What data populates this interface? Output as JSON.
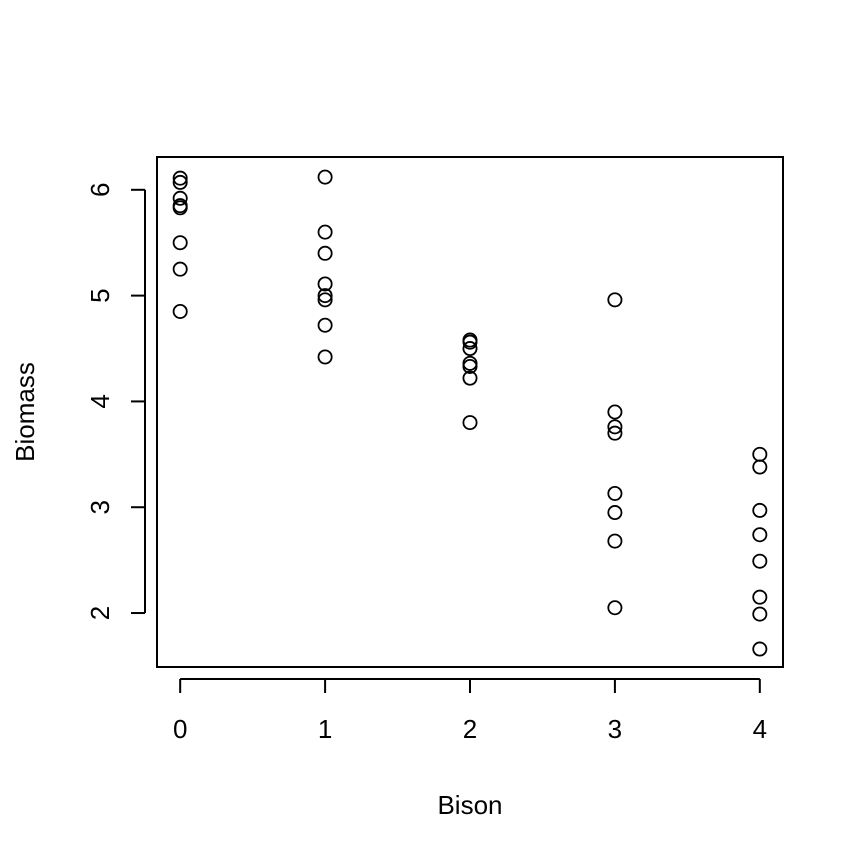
{
  "chart_data": {
    "type": "scatter",
    "title": "",
    "xlabel": "Bison",
    "ylabel": "Biomass",
    "xlim": [
      -0.16,
      4.16
    ],
    "ylim": [
      1.49,
      6.31
    ],
    "xticks": [
      0,
      1,
      2,
      3,
      4
    ],
    "xtick_labels": [
      "0",
      "1",
      "2",
      "3",
      "4"
    ],
    "yticks": [
      2,
      3,
      4,
      5,
      6
    ],
    "ytick_labels": [
      "2",
      "3",
      "4",
      "5",
      "6"
    ],
    "grid": false,
    "marker": "open-circle",
    "marker_color": "#000000",
    "series": [
      {
        "points": [
          {
            "x": 0,
            "y": 6.11
          },
          {
            "x": 0,
            "y": 6.07
          },
          {
            "x": 0,
            "y": 5.92
          },
          {
            "x": 0,
            "y": 5.85
          },
          {
            "x": 0,
            "y": 5.83
          },
          {
            "x": 0,
            "y": 5.5
          },
          {
            "x": 0,
            "y": 5.25
          },
          {
            "x": 0,
            "y": 4.85
          },
          {
            "x": 1,
            "y": 6.12
          },
          {
            "x": 1,
            "y": 5.6
          },
          {
            "x": 1,
            "y": 5.4
          },
          {
            "x": 1,
            "y": 5.11
          },
          {
            "x": 1,
            "y": 5.0
          },
          {
            "x": 1,
            "y": 4.96
          },
          {
            "x": 1,
            "y": 4.72
          },
          {
            "x": 1,
            "y": 4.42
          },
          {
            "x": 2,
            "y": 4.58
          },
          {
            "x": 2,
            "y": 4.56
          },
          {
            "x": 2,
            "y": 4.5
          },
          {
            "x": 2,
            "y": 4.36
          },
          {
            "x": 2,
            "y": 4.33
          },
          {
            "x": 2,
            "y": 4.22
          },
          {
            "x": 2,
            "y": 3.8
          },
          {
            "x": 3,
            "y": 4.96
          },
          {
            "x": 3,
            "y": 3.9
          },
          {
            "x": 3,
            "y": 3.76
          },
          {
            "x": 3,
            "y": 3.7
          },
          {
            "x": 3,
            "y": 3.13
          },
          {
            "x": 3,
            "y": 2.95
          },
          {
            "x": 3,
            "y": 2.68
          },
          {
            "x": 3,
            "y": 2.05
          },
          {
            "x": 4,
            "y": 3.5
          },
          {
            "x": 4,
            "y": 3.38
          },
          {
            "x": 4,
            "y": 2.97
          },
          {
            "x": 4,
            "y": 2.74
          },
          {
            "x": 4,
            "y": 2.49
          },
          {
            "x": 4,
            "y": 2.15
          },
          {
            "x": 4,
            "y": 1.99
          },
          {
            "x": 4,
            "y": 1.66
          }
        ]
      }
    ]
  }
}
